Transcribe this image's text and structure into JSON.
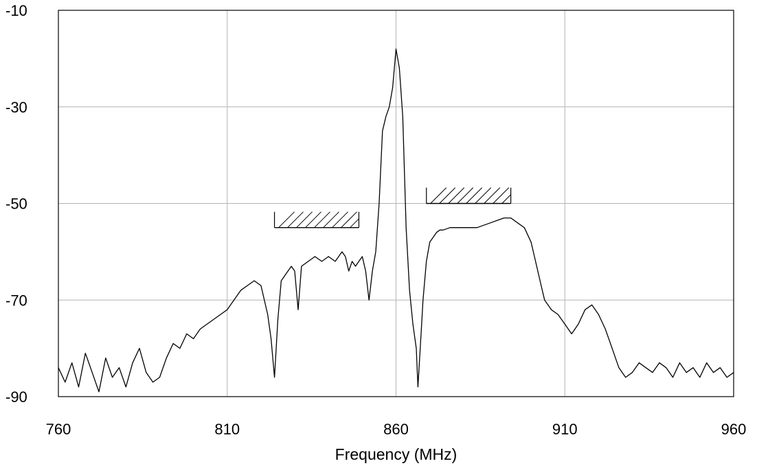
{
  "chart_data": {
    "type": "line",
    "title": "",
    "xlabel": "Frequency (MHz)",
    "ylabel": "",
    "xlim": [
      760,
      960
    ],
    "ylim": [
      -90,
      -10
    ],
    "x_ticks": [
      760,
      810,
      860,
      910,
      960
    ],
    "x_tick_labels": [
      "760",
      "810",
      "860",
      "910",
      "960"
    ],
    "y_ticks": [
      -10,
      -30,
      -50,
      -70,
      -90
    ],
    "y_tick_labels": [
      "-10",
      "-30",
      "-50",
      "-70",
      "-90"
    ],
    "grid": true,
    "colors": {
      "line": "#000000",
      "grid": "#b4b4b4",
      "frame": "#000000"
    },
    "mask_limits": [
      {
        "name": "lower-mask",
        "x_start": 824,
        "x_end": 849,
        "y": -55,
        "pattern": "hatched"
      },
      {
        "name": "upper-mask",
        "x_start": 869,
        "x_end": 894,
        "y": -50,
        "pattern": "hatched"
      }
    ],
    "series": [
      {
        "name": "",
        "x": [
          760,
          762,
          764,
          766,
          768,
          770,
          772,
          774,
          776,
          778,
          780,
          782,
          784,
          786,
          788,
          790,
          792,
          794,
          796,
          798,
          800,
          802,
          804,
          806,
          808,
          810,
          812,
          814,
          816,
          818,
          820,
          822,
          823,
          824,
          825,
          826,
          828,
          829,
          830,
          831,
          832,
          834,
          836,
          838,
          840,
          842,
          844,
          845,
          846,
          847,
          848,
          849,
          850,
          851,
          852,
          853,
          854,
          855,
          856,
          857,
          858,
          859,
          860,
          861,
          862,
          863,
          864,
          865,
          866,
          866.5,
          867,
          867.5,
          868,
          869,
          870,
          871,
          872,
          873,
          874,
          876,
          878,
          880,
          882,
          884,
          886,
          888,
          890,
          892,
          894,
          896,
          898,
          900,
          901,
          902,
          903,
          904,
          906,
          908,
          910,
          912,
          914,
          916,
          918,
          919,
          920,
          922,
          924,
          926,
          928,
          930,
          932,
          934,
          936,
          938,
          940,
          942,
          944,
          946,
          948,
          950,
          952,
          954,
          956,
          958,
          960
        ],
        "y": [
          -84,
          -87,
          -83,
          -88,
          -81,
          -85,
          -89,
          -82,
          -86,
          -84,
          -88,
          -83,
          -80,
          -85,
          -87,
          -86,
          -82,
          -79,
          -80,
          -77,
          -78,
          -76,
          -75,
          -74,
          -73,
          -72,
          -70,
          -68,
          -67,
          -66,
          -67,
          -73,
          -78,
          -86,
          -74,
          -66,
          -64,
          -63,
          -64,
          -72,
          -63,
          -62,
          -61,
          -62,
          -61,
          -62,
          -60,
          -61,
          -64,
          -62,
          -63,
          -62,
          -61,
          -64,
          -70,
          -64,
          -60,
          -50,
          -35,
          -32,
          -30,
          -26,
          -18,
          -22,
          -32,
          -55,
          -68,
          -75,
          -80,
          -88,
          -82,
          -76,
          -70,
          -62,
          -58,
          -57,
          -56,
          -55.5,
          -55.5,
          -55,
          -55,
          -55,
          -55,
          -55,
          -54.5,
          -54,
          -53.5,
          -53,
          -53,
          -54,
          -55,
          -58,
          -61,
          -64,
          -67,
          -70,
          -72,
          -73,
          -75,
          -77,
          -75,
          -72,
          -71,
          -72,
          -73,
          -76,
          -80,
          -84,
          -86,
          -85,
          -83,
          -84,
          -85,
          -83,
          -84,
          -86,
          -83,
          -85,
          -84,
          -86,
          -83,
          -85,
          -84,
          -86,
          -85
        ]
      }
    ]
  }
}
